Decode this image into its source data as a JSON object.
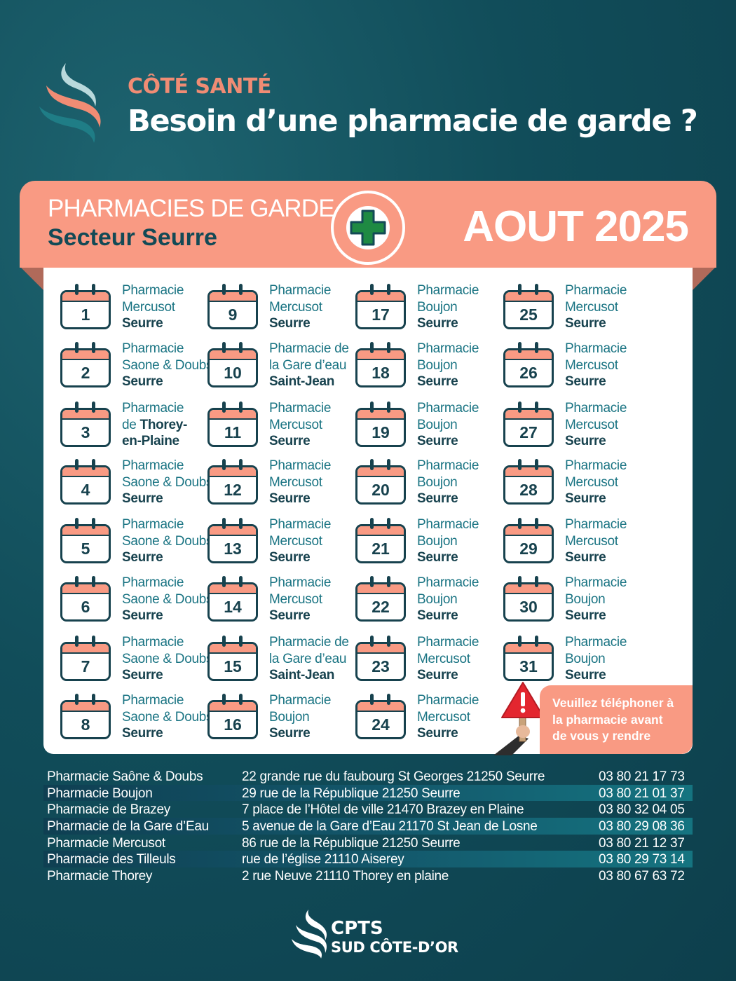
{
  "header": {
    "kicker": "CÔTÉ SANTÉ",
    "title": "Besoin d’une pharmacie de garde ?"
  },
  "banner": {
    "line1": "PHARMACIES DE GARDE",
    "line2": "Secteur Seurre",
    "month": "AOUT 2025",
    "badge_icon": "pharmacy-cross-icon"
  },
  "colors": {
    "background": "#114d5a",
    "accent": "#f99a83",
    "dark": "#17424e",
    "teal_text": "#1a7483",
    "cross_green": "#1f8a43"
  },
  "days": [
    {
      "num": "1",
      "l1": "Pharmacie",
      "l2": "Mercusot",
      "l3": "Seurre"
    },
    {
      "num": "2",
      "l1": "Pharmacie",
      "l2": "Saone & Doubs",
      "l3": "Seurre"
    },
    {
      "num": "3",
      "l1": "Pharmacie",
      "l2a": "de ",
      "l2b": "Thorey-",
      "l3": "en-Plaine"
    },
    {
      "num": "4",
      "l1": "Pharmacie",
      "l2": "Saone & Doubs",
      "l3": "Seurre"
    },
    {
      "num": "5",
      "l1": "Pharmacie",
      "l2": "Saone & Doubs",
      "l3": "Seurre"
    },
    {
      "num": "6",
      "l1": "Pharmacie",
      "l2": "Saone & Doubs",
      "l3": "Seurre"
    },
    {
      "num": "7",
      "l1": "Pharmacie",
      "l2": "Saone & Doubs",
      "l3": "Seurre"
    },
    {
      "num": "8",
      "l1": "Pharmacie",
      "l2": "Saone & Doubs",
      "l3": "Seurre"
    },
    {
      "num": "9",
      "l1": "Pharmacie",
      "l2": "Mercusot",
      "l3": "Seurre"
    },
    {
      "num": "10",
      "l1": "Pharmacie de",
      "l2": "la Gare d’eau",
      "l3": "Saint-Jean"
    },
    {
      "num": "11",
      "l1": "Pharmacie",
      "l2": "Mercusot",
      "l3": "Seurre"
    },
    {
      "num": "12",
      "l1": "Pharmacie",
      "l2": "Mercusot",
      "l3": "Seurre"
    },
    {
      "num": "13",
      "l1": "Pharmacie",
      "l2": "Mercusot",
      "l3": "Seurre"
    },
    {
      "num": "14",
      "l1": "Pharmacie",
      "l2": "Mercusot",
      "l3": "Seurre"
    },
    {
      "num": "15",
      "l1": "Pharmacie de",
      "l2": "la Gare d’eau",
      "l3": "Saint-Jean"
    },
    {
      "num": "16",
      "l1": "Pharmacie",
      "l2": "Boujon",
      "l3": "Seurre"
    },
    {
      "num": "17",
      "l1": "Pharmacie",
      "l2": "Boujon",
      "l3": "Seurre"
    },
    {
      "num": "18",
      "l1": "Pharmacie",
      "l2": "Boujon",
      "l3": "Seurre"
    },
    {
      "num": "19",
      "l1": "Pharmacie",
      "l2": "Boujon",
      "l3": "Seurre"
    },
    {
      "num": "20",
      "l1": "Pharmacie",
      "l2": "Boujon",
      "l3": "Seurre"
    },
    {
      "num": "21",
      "l1": "Pharmacie",
      "l2": "Boujon",
      "l3": "Seurre"
    },
    {
      "num": "22",
      "l1": "Pharmacie",
      "l2": "Boujon",
      "l3": "Seurre"
    },
    {
      "num": "23",
      "l1": "Pharmacie",
      "l2": "Mercusot",
      "l3": "Seurre"
    },
    {
      "num": "24",
      "l1": "Pharmacie",
      "l2": "Mercusot",
      "l3": "Seurre"
    },
    {
      "num": "25",
      "l1": "Pharmacie",
      "l2": "Mercusot",
      "l3": "Seurre"
    },
    {
      "num": "26",
      "l1": "Pharmacie",
      "l2": "Mercusot",
      "l3": "Seurre"
    },
    {
      "num": "27",
      "l1": "Pharmacie",
      "l2": "Mercusot",
      "l3": "Seurre"
    },
    {
      "num": "28",
      "l1": "Pharmacie",
      "l2": "Mercusot",
      "l3": "Seurre"
    },
    {
      "num": "29",
      "l1": "Pharmacie",
      "l2": "Mercusot",
      "l3": "Seurre"
    },
    {
      "num": "30",
      "l1": "Pharmacie",
      "l2": "Boujon",
      "l3": "Seurre"
    },
    {
      "num": "31",
      "l1": "Pharmacie",
      "l2": "Boujon",
      "l3": "Seurre"
    }
  ],
  "warning": {
    "icon": "warning-sign-icon",
    "line1": "Veuillez téléphoner à",
    "line2": "la pharmacie avant",
    "line3": "de vous y rendre"
  },
  "directory": [
    {
      "name": "Pharmacie Saône & Doubs",
      "address": "22 grande rue du faubourg St Georges 21250 Seurre",
      "phone": "03 80 21 17 73"
    },
    {
      "name": "Pharmacie Boujon",
      "address": "29 rue de la République 21250 Seurre",
      "phone": "03 80 21 01 37"
    },
    {
      "name": "Pharmacie de Brazey",
      "address": "7 place de l’Hôtel de ville 21470 Brazey en Plaine",
      "phone": "03 80 32 04 05"
    },
    {
      "name": "Pharmacie de la Gare d’Eau",
      "address": "5 avenue de la Gare d’Eau 21170 St Jean de Losne",
      "phone": "03 80 29 08 36"
    },
    {
      "name": "Pharmacie Mercusot",
      "address": "86 rue de la République 21250 Seurre",
      "phone": "03 80 21 12 37"
    },
    {
      "name": "Pharmacie des Tilleuls",
      "address": "rue de l’église 21110 Aiserey",
      "phone": "03 80 29 73 14"
    },
    {
      "name": "Pharmacie Thorey",
      "address": "2 rue Neuve 21110 Thorey en plaine",
      "phone": "03 80 67 63 72"
    }
  ],
  "footer": {
    "brand_line1": "CPTS",
    "brand_line2": "SUD CÔTE-D’OR",
    "logo_icon": "cpts-waves-logo-icon"
  }
}
